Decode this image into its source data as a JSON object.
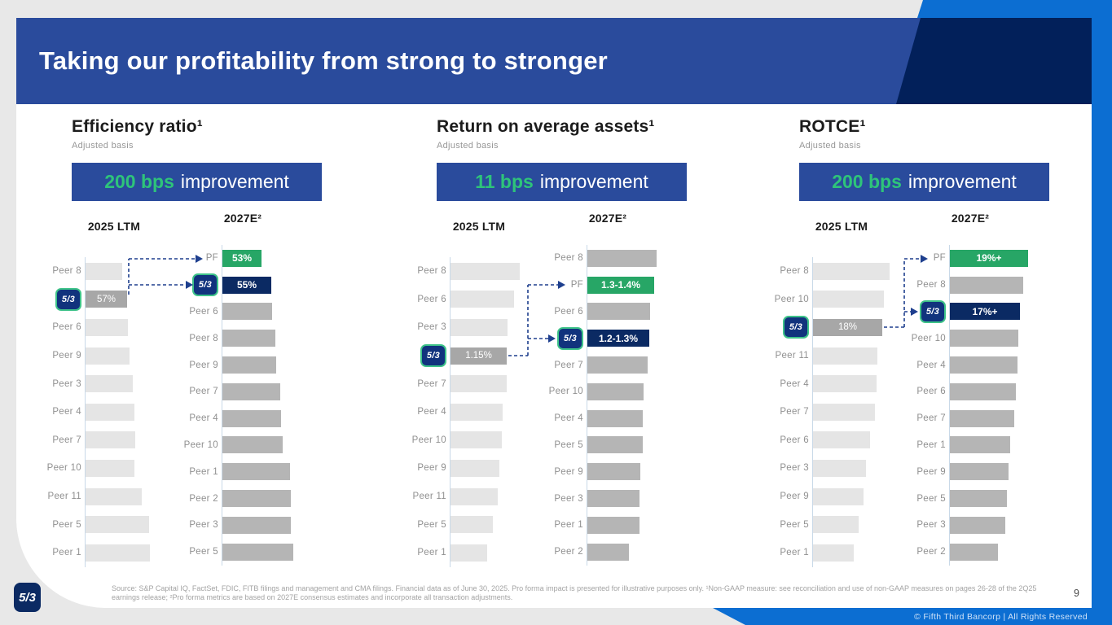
{
  "slide": {
    "title": "Taking our profitability from strong to stronger",
    "page_number": "9",
    "logo_text": "5/3",
    "footer_source": "Source: S&P Capital IQ, FactSet, FDIC, FITB filings and management and CMA filings. Financial data as of June 30, 2025. Pro forma impact is presented for illustrative purposes only. ¹Non-GAAP measure: see reconciliation and use of non-GAAP measures on pages 26-28 of the 2Q25 earnings release; ²Pro forma metrics are based on 2027E consensus estimates and incorporate all transaction adjustments.",
    "copyright": "© Fifth Third Bancorp | All Rights Reserved"
  },
  "colors": {
    "header_blue": "#2a4b9c",
    "dark_navy_accent": "#02205a",
    "bright_blue_accent": "#0c6ed2",
    "green_text": "#2ec47a",
    "green_bar": "#27a666",
    "navy_bar": "#0b2a63",
    "gray_bar_light": "#e5e5e5",
    "gray_bar_mid": "#b5b5b5",
    "gray_bar_dark": "#a7a7a7",
    "badge_border_green": "#3ec389"
  },
  "chart_data": [
    {
      "type": "bar",
      "orientation": "horizontal",
      "title": "Efficiency ratio¹",
      "subtitle": "Adjusted basis",
      "banner": {
        "highlight": "200 bps",
        "rest": "improvement"
      },
      "note": "len values are relative bar lengths (px); only labeled bars show values; value axis hidden",
      "groups": [
        {
          "header": "2025 LTM",
          "rows": [
            {
              "label": "Peer 8",
              "len": 45,
              "style": "peer-light"
            },
            {
              "label": "5/3",
              "logo": true,
              "len": 51,
              "style": "fitb-ltm",
              "value": "57%"
            },
            {
              "label": "Peer 6",
              "len": 52,
              "style": "peer-light"
            },
            {
              "label": "Peer 9",
              "len": 54,
              "style": "peer-light"
            },
            {
              "label": "Peer 3",
              "len": 58,
              "style": "peer-light"
            },
            {
              "label": "Peer 4",
              "len": 60,
              "style": "peer-light"
            },
            {
              "label": "Peer 7",
              "len": 61,
              "style": "peer-light"
            },
            {
              "label": "Peer 10",
              "len": 60,
              "style": "peer-light"
            },
            {
              "label": "Peer 11",
              "len": 69,
              "style": "peer-light"
            },
            {
              "label": "Peer 5",
              "len": 78,
              "style": "peer-light"
            },
            {
              "label": "Peer 1",
              "len": 79,
              "style": "peer-light"
            }
          ]
        },
        {
          "header": "2027E²",
          "rows": [
            {
              "label": "PF",
              "len": 48,
              "style": "pf",
              "value": "53%"
            },
            {
              "label": "5/3",
              "logo": true,
              "len": 60,
              "style": "fitb",
              "value": "55%"
            },
            {
              "label": "Peer 6",
              "len": 61,
              "style": "peer-mid"
            },
            {
              "label": "Peer 8",
              "len": 65,
              "style": "peer-mid"
            },
            {
              "label": "Peer 9",
              "len": 66,
              "style": "peer-mid"
            },
            {
              "label": "Peer 7",
              "len": 71,
              "style": "peer-mid"
            },
            {
              "label": "Peer 4",
              "len": 72,
              "style": "peer-mid"
            },
            {
              "label": "Peer 10",
              "len": 74,
              "style": "peer-mid"
            },
            {
              "label": "Peer 1",
              "len": 83,
              "style": "peer-mid"
            },
            {
              "label": "Peer 2",
              "len": 84,
              "style": "peer-mid"
            },
            {
              "label": "Peer 3",
              "len": 84,
              "style": "peer-mid"
            },
            {
              "label": "Peer 5",
              "len": 87,
              "style": "peer-mid"
            }
          ]
        }
      ]
    },
    {
      "type": "bar",
      "orientation": "horizontal",
      "title": "Return on average assets¹",
      "subtitle": "Adjusted basis",
      "banner": {
        "highlight": "11 bps",
        "rest": "improvement"
      },
      "groups": [
        {
          "header": "2025 LTM",
          "rows": [
            {
              "label": "Peer 8",
              "len": 85,
              "style": "peer-light"
            },
            {
              "label": "Peer 6",
              "len": 78,
              "style": "peer-light"
            },
            {
              "label": "Peer 3",
              "len": 70,
              "style": "peer-light"
            },
            {
              "label": "5/3",
              "logo": true,
              "len": 69,
              "style": "fitb-ltm",
              "value": "1.15%"
            },
            {
              "label": "Peer 7",
              "len": 69,
              "style": "peer-light"
            },
            {
              "label": "Peer 4",
              "len": 64,
              "style": "peer-light"
            },
            {
              "label": "Peer 10",
              "len": 63,
              "style": "peer-light"
            },
            {
              "label": "Peer 9",
              "len": 60,
              "style": "peer-light"
            },
            {
              "label": "Peer 11",
              "len": 58,
              "style": "peer-light"
            },
            {
              "label": "Peer 5",
              "len": 52,
              "style": "peer-light"
            },
            {
              "label": "Peer 1",
              "len": 45,
              "style": "peer-light"
            }
          ]
        },
        {
          "header": "2027E²",
          "rows": [
            {
              "label": "Peer 8",
              "len": 85,
              "style": "peer-mid"
            },
            {
              "label": "PF",
              "len": 82,
              "style": "pf",
              "value": "1.3-1.4%"
            },
            {
              "label": "Peer 6",
              "len": 77,
              "style": "peer-mid"
            },
            {
              "label": "5/3",
              "logo": true,
              "len": 76,
              "style": "fitb",
              "value": "1.2-1.3%"
            },
            {
              "label": "Peer 7",
              "len": 74,
              "style": "peer-mid"
            },
            {
              "label": "Peer 10",
              "len": 69,
              "style": "peer-mid"
            },
            {
              "label": "Peer 4",
              "len": 68,
              "style": "peer-mid"
            },
            {
              "label": "Peer 5",
              "len": 68,
              "style": "peer-mid"
            },
            {
              "label": "Peer 9",
              "len": 65,
              "style": "peer-mid"
            },
            {
              "label": "Peer 3",
              "len": 64,
              "style": "peer-mid"
            },
            {
              "label": "Peer 1",
              "len": 64,
              "style": "peer-mid"
            },
            {
              "label": "Peer 2",
              "len": 51,
              "style": "peer-mid"
            }
          ]
        }
      ]
    },
    {
      "type": "bar",
      "orientation": "horizontal",
      "title": "ROTCE¹",
      "subtitle": "Adjusted basis",
      "banner": {
        "highlight": "200 bps",
        "rest": "improvement"
      },
      "groups": [
        {
          "header": "2025 LTM",
          "rows": [
            {
              "label": "Peer 8",
              "len": 94,
              "style": "peer-light"
            },
            {
              "label": "Peer 10",
              "len": 87,
              "style": "peer-light"
            },
            {
              "label": "5/3",
              "logo": true,
              "len": 85,
              "style": "fitb-ltm",
              "value": "18%"
            },
            {
              "label": "Peer 11",
              "len": 79,
              "style": "peer-light"
            },
            {
              "label": "Peer 4",
              "len": 78,
              "style": "peer-light"
            },
            {
              "label": "Peer 7",
              "len": 76,
              "style": "peer-light"
            },
            {
              "label": "Peer 6",
              "len": 70,
              "style": "peer-light"
            },
            {
              "label": "Peer 3",
              "len": 65,
              "style": "peer-light"
            },
            {
              "label": "Peer 9",
              "len": 62,
              "style": "peer-light"
            },
            {
              "label": "Peer 5",
              "len": 56,
              "style": "peer-light"
            },
            {
              "label": "Peer 1",
              "len": 50,
              "style": "peer-light"
            }
          ]
        },
        {
          "header": "2027E²",
          "rows": [
            {
              "label": "PF",
              "len": 96,
              "style": "pf",
              "value": "19%+"
            },
            {
              "label": "Peer 8",
              "len": 90,
              "style": "peer-mid"
            },
            {
              "label": "5/3",
              "logo": true,
              "len": 86,
              "style": "fitb",
              "value": "17%+"
            },
            {
              "label": "Peer 10",
              "len": 84,
              "style": "peer-mid"
            },
            {
              "label": "Peer 4",
              "len": 83,
              "style": "peer-mid"
            },
            {
              "label": "Peer 6",
              "len": 81,
              "style": "peer-mid"
            },
            {
              "label": "Peer 7",
              "len": 79,
              "style": "peer-mid"
            },
            {
              "label": "Peer 1",
              "len": 74,
              "style": "peer-mid"
            },
            {
              "label": "Peer 9",
              "len": 72,
              "style": "peer-mid"
            },
            {
              "label": "Peer 5",
              "len": 70,
              "style": "peer-mid"
            },
            {
              "label": "Peer 3",
              "len": 68,
              "style": "peer-mid"
            },
            {
              "label": "Peer 2",
              "len": 59,
              "style": "peer-mid"
            }
          ]
        }
      ]
    }
  ]
}
